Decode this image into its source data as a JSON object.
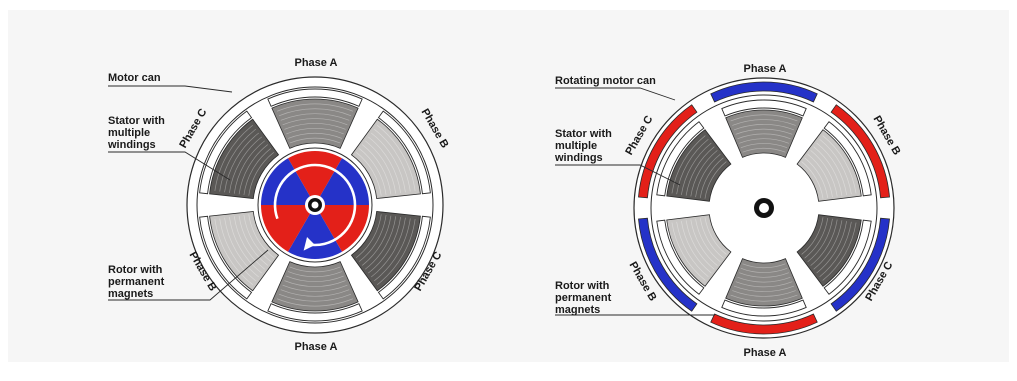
{
  "colors": {
    "background": "#f6f6f6",
    "red": "#e32019",
    "blue": "#2532c8",
    "dark_winding": "#5a5856",
    "mid_winding": "#8a8886",
    "light_winding": "#c8c6c4",
    "outline": "#2a2a2a"
  },
  "left_motor": {
    "labels": {
      "motor_can": "Motor can",
      "stator_line1": "Stator with",
      "stator_line2": "multiple",
      "stator_line3": "windings",
      "rotor_line1": "Rotor with",
      "rotor_line2": "permanent",
      "rotor_line3": "magnets"
    },
    "phases": {
      "top": "Phase A",
      "top_right": "Phase B",
      "bottom_right": "Phase C",
      "bottom": "Phase A",
      "bottom_left": "Phase B",
      "top_left": "Phase C"
    },
    "rotor_icon": "rotation-arrow-icon"
  },
  "right_motor": {
    "labels": {
      "motor_can": "Rotating motor can",
      "stator_line1": "Stator with",
      "stator_line2": "multiple",
      "stator_line3": "windings",
      "rotor_line1": "Rotor with",
      "rotor_line2": "permanent",
      "rotor_line3": "magnets"
    },
    "phases": {
      "top": "Phase A",
      "top_right": "Phase B",
      "bottom_right": "Phase C",
      "bottom": "Phase A",
      "bottom_left": "Phase B",
      "top_left": "Phase C"
    }
  }
}
